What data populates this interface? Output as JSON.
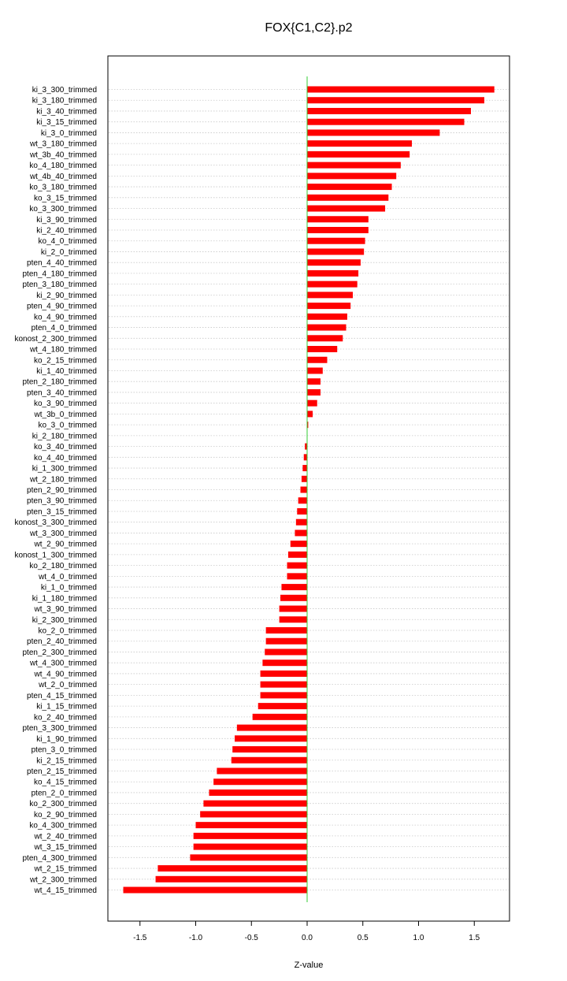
{
  "chart_data": {
    "type": "bar",
    "orientation": "horizontal",
    "title": "FOX{C1,C2}.p2",
    "xlabel": "Z-value",
    "ylabel": "",
    "xlim": [
      -1.8,
      1.8
    ],
    "x_ticks": [
      -1.5,
      -1.0,
      -0.5,
      0.0,
      0.5,
      1.0,
      1.5
    ],
    "x_tick_labels": [
      "-1.5",
      "-1.0",
      "-0.5",
      "0.0",
      "0.5",
      "1.0",
      "1.5"
    ],
    "grid": "horizontal dotted",
    "reference_line": 0,
    "colors": {
      "bar": "#ff0000",
      "reference_line": "#33cc33",
      "grid": "#c8c8c8",
      "frame": "#000000"
    },
    "categories": [
      "ki_3_300_trimmed",
      "ki_3_180_trimmed",
      "ki_3_40_trimmed",
      "ki_3_15_trimmed",
      "ki_3_0_trimmed",
      "wt_3_180_trimmed",
      "wt_3b_40_trimmed",
      "ko_4_180_trimmed",
      "wt_4b_40_trimmed",
      "ko_3_180_trimmed",
      "ko_3_15_trimmed",
      "ko_3_300_trimmed",
      "ki_3_90_trimmed",
      "ki_2_40_trimmed",
      "ko_4_0_trimmed",
      "ki_2_0_trimmed",
      "pten_4_40_trimmed",
      "pten_4_180_trimmed",
      "pten_3_180_trimmed",
      "ki_2_90_trimmed",
      "pten_4_90_trimmed",
      "ko_4_90_trimmed",
      "pten_4_0_trimmed",
      "konost_2_300_trimmed",
      "wt_4_180_trimmed",
      "ko_2_15_trimmed",
      "ki_1_40_trimmed",
      "pten_2_180_trimmed",
      "pten_3_40_trimmed",
      "ko_3_90_trimmed",
      "wt_3b_0_trimmed",
      "ko_3_0_trimmed",
      "ki_2_180_trimmed",
      "ko_3_40_trimmed",
      "ko_4_40_trimmed",
      "ki_1_300_trimmed",
      "wt_2_180_trimmed",
      "pten_2_90_trimmed",
      "pten_3_90_trimmed",
      "pten_3_15_trimmed",
      "konost_3_300_trimmed",
      "wt_3_300_trimmed",
      "wt_2_90_trimmed",
      "konost_1_300_trimmed",
      "ko_2_180_trimmed",
      "wt_4_0_trimmed",
      "ki_1_0_trimmed",
      "ki_1_180_trimmed",
      "wt_3_90_trimmed",
      "ki_2_300_trimmed",
      "ko_2_0_trimmed",
      "pten_2_40_trimmed",
      "pten_2_300_trimmed",
      "wt_4_300_trimmed",
      "wt_4_90_trimmed",
      "wt_2_0_trimmed",
      "pten_4_15_trimmed",
      "ki_1_15_trimmed",
      "ko_2_40_trimmed",
      "pten_3_300_trimmed",
      "ki_1_90_trimmed",
      "pten_3_0_trimmed",
      "ki_2_15_trimmed",
      "pten_2_15_trimmed",
      "ko_4_15_trimmed",
      "pten_2_0_trimmed",
      "ko_2_300_trimmed",
      "ko_2_90_trimmed",
      "ko_4_300_trimmed",
      "wt_2_40_trimmed",
      "wt_3_15_trimmed",
      "pten_4_300_trimmed",
      "wt_2_15_trimmed",
      "wt_2_300_trimmed",
      "wt_4_15_trimmed"
    ],
    "values": [
      1.68,
      1.59,
      1.47,
      1.41,
      1.19,
      0.94,
      0.92,
      0.84,
      0.8,
      0.76,
      0.73,
      0.7,
      0.55,
      0.55,
      0.52,
      0.51,
      0.48,
      0.46,
      0.45,
      0.41,
      0.39,
      0.36,
      0.35,
      0.32,
      0.27,
      0.18,
      0.14,
      0.12,
      0.12,
      0.09,
      0.05,
      0.01,
      0.0,
      -0.02,
      -0.03,
      -0.04,
      -0.05,
      -0.06,
      -0.08,
      -0.09,
      -0.1,
      -0.11,
      -0.15,
      -0.17,
      -0.18,
      -0.18,
      -0.23,
      -0.24,
      -0.25,
      -0.25,
      -0.37,
      -0.37,
      -0.38,
      -0.4,
      -0.42,
      -0.42,
      -0.42,
      -0.44,
      -0.49,
      -0.63,
      -0.65,
      -0.67,
      -0.68,
      -0.81,
      -0.84,
      -0.88,
      -0.93,
      -0.96,
      -1.0,
      -1.02,
      -1.02,
      -1.05,
      -1.34,
      -1.36,
      -1.65
    ]
  }
}
